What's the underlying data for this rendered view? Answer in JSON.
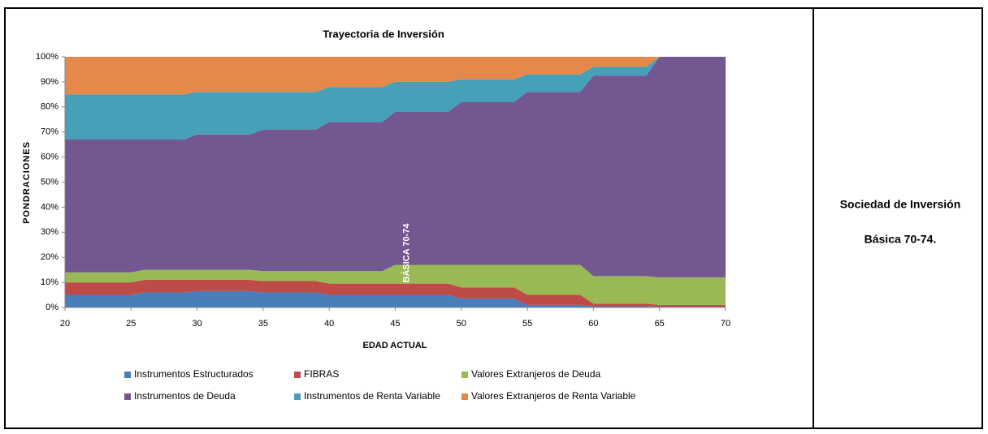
{
  "chart_data": {
    "type": "stacked_area",
    "title": "Trayectoria de Inversión",
    "x_label": "EDAD ACTUAL",
    "y_label": "PONDRACIONES",
    "x": [
      20,
      25,
      26,
      29,
      30,
      34,
      35,
      39,
      40,
      44,
      45,
      49,
      50,
      54,
      55,
      59,
      60,
      64,
      65,
      70
    ],
    "series": [
      {
        "name": "Instrumentos Estructurados",
        "color": "#4a7ebb",
        "values": [
          5,
          5,
          6,
          6,
          6.5,
          6.5,
          6,
          6,
          5,
          5,
          5,
          5,
          3.5,
          3.5,
          1,
          1,
          0.5,
          0.5,
          0.3,
          0.3
        ]
      },
      {
        "name": "FIBRAS",
        "color": "#be4b48",
        "values": [
          5,
          5,
          5,
          5,
          4.5,
          4.5,
          4.5,
          4.5,
          4.5,
          4.5,
          4.5,
          4.5,
          4.5,
          4.5,
          4,
          4,
          1,
          1,
          0.7,
          0.7
        ]
      },
      {
        "name": "Valores Extranjeros de Deuda",
        "color": "#98b954",
        "values": [
          4,
          4,
          4,
          4,
          4,
          4,
          4,
          4,
          5,
          5,
          7.5,
          7.5,
          9,
          9,
          12,
          12,
          11,
          11,
          11,
          11
        ]
      },
      {
        "name": "Instrumentos de Deuda",
        "color": "#735791",
        "values": [
          53,
          53,
          52,
          52,
          54,
          54,
          56.5,
          56.5,
          59.5,
          59.5,
          61,
          61,
          65,
          65,
          69,
          69,
          80,
          80,
          88,
          88
        ]
      },
      {
        "name": "Instrumentos de Renta Variable",
        "color": "#46a0b8",
        "values": [
          18,
          18,
          18,
          18,
          17,
          17,
          15,
          15,
          14,
          14,
          12,
          12,
          9,
          9,
          7,
          7,
          3.5,
          3.5,
          0,
          0
        ]
      },
      {
        "name": "Valores Extranjeros de Renta Variable",
        "color": "#e5884a",
        "values": [
          15,
          15,
          15,
          15,
          14,
          14,
          14,
          14,
          12,
          12,
          10,
          10,
          9,
          9,
          7,
          7,
          4,
          4,
          0,
          0
        ]
      }
    ],
    "xlim": [
      20,
      70
    ],
    "ylim": [
      0,
      100
    ],
    "xticks": [
      20,
      25,
      30,
      35,
      40,
      45,
      50,
      55,
      60,
      65,
      70
    ],
    "yticks": [
      {
        "value": 0,
        "label": "0%"
      },
      {
        "value": 10,
        "label": "10%"
      },
      {
        "value": 20,
        "label": "20%"
      },
      {
        "value": 30,
        "label": "30%"
      },
      {
        "value": 40,
        "label": "40%"
      },
      {
        "value": 50,
        "label": "50%"
      },
      {
        "value": 60,
        "label": "60%"
      },
      {
        "value": 70,
        "label": "70%"
      },
      {
        "value": 80,
        "label": "80%"
      },
      {
        "value": 90,
        "label": "90%"
      },
      {
        "value": 100,
        "label": "100%"
      }
    ],
    "annotation": "BÁSICA 70-74"
  },
  "side_panel": {
    "line1": "Sociedad de Inversión",
    "line2": "Básica 70-74."
  }
}
